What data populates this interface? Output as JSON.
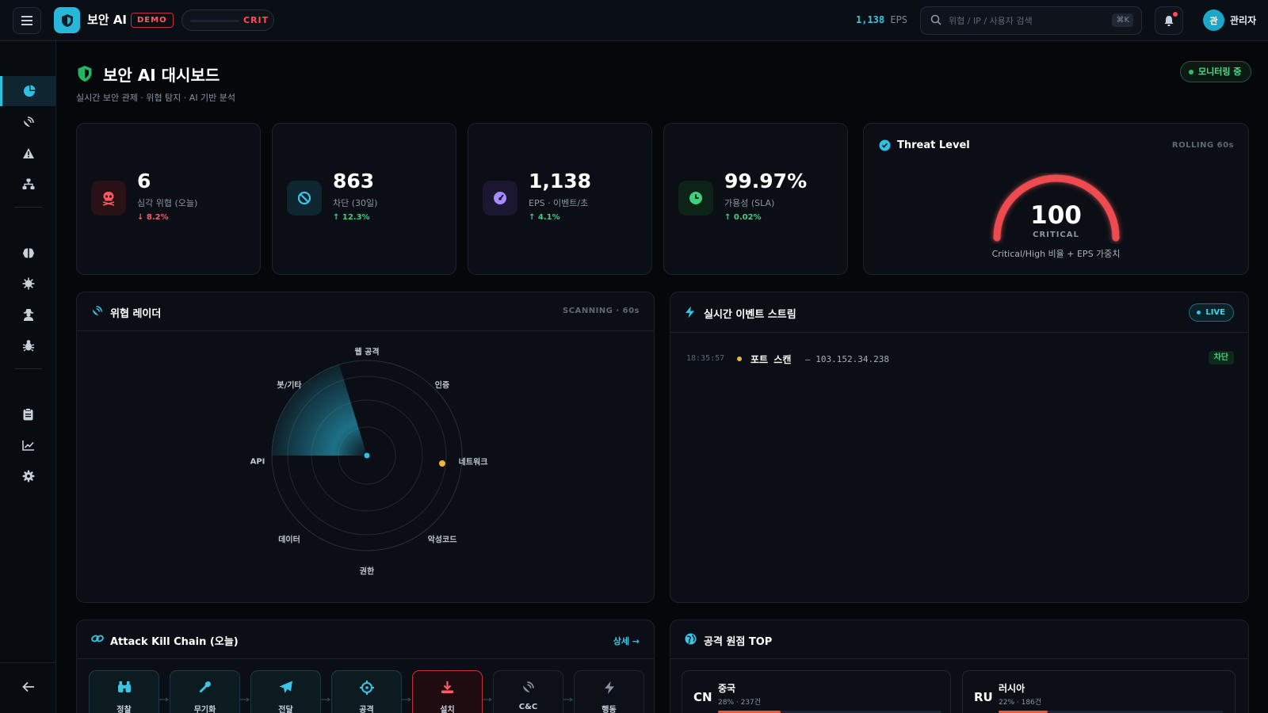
{
  "topbar": {
    "brand": "보안 AI",
    "demo_badge": "DEMO",
    "crit_label": "CRIT",
    "eps_value": "1,138",
    "eps_unit": "EPS",
    "search_placeholder": "위협 / IP / 사용자 검색",
    "search_shortcut": "⌘K",
    "avatar_initial": "관",
    "user_name": "관리자"
  },
  "header": {
    "title": "보안 AI 대시보드",
    "subtitle": "실시간 보안 관제 · 위협 탐지 · AI 기반 분석",
    "status_pill": "모니터링 중"
  },
  "stats": [
    {
      "value": "6",
      "label": "심각 위협 (오늘)",
      "delta": "↓ 8.2%",
      "icon": "skull-icon",
      "color": "#ff5b63"
    },
    {
      "value": "863",
      "label": "차단 (30일)",
      "delta": "↑ 12.3%",
      "icon": "block-icon",
      "color": "#39c6e6"
    },
    {
      "value": "1,138",
      "label": "EPS · 이벤트/초",
      "delta": "↑ 4.1%",
      "icon": "gauge-icon",
      "color": "#a98bff"
    },
    {
      "value": "99.97%",
      "label": "가용성 (SLA)",
      "delta": "↑ 0.02%",
      "icon": "clock-icon",
      "color": "#3cd07a"
    }
  ],
  "threat_level": {
    "title": "Threat Level",
    "window": "ROLLING 60s",
    "value": "100",
    "level": "CRITICAL",
    "caption": "Critical/High 비율 + EPS 가중치",
    "gauge_fraction": 1.0,
    "color": "#ef4b4f"
  },
  "radar": {
    "title": "위협 레이더",
    "status": "SCANNING · 60s",
    "labels": [
      "웹 공격",
      "인증",
      "네트워크",
      "악성코드",
      "권한",
      "데이터",
      "API",
      "봇/기타"
    ],
    "accent": "#2ec0e2",
    "blip_color": "#f0b43c"
  },
  "event_stream": {
    "title": "실시간 이벤트 스트림",
    "live_label": "LIVE",
    "events": [
      {
        "time": "18:35:57",
        "type": "포트 스캔",
        "ip": "— 103.152.34.238",
        "action": "차단"
      }
    ]
  },
  "kill_chain": {
    "title": "Attack Kill Chain (오늘)",
    "detail_link": "상세 →",
    "steps": [
      {
        "label": "정찰",
        "icon": "binoculars-icon",
        "state": "normal"
      },
      {
        "label": "무기화",
        "icon": "wrench-icon",
        "state": "normal"
      },
      {
        "label": "전달",
        "icon": "paper-plane-icon",
        "state": "normal"
      },
      {
        "label": "공격",
        "icon": "crosshair-icon",
        "state": "normal"
      },
      {
        "label": "설치",
        "icon": "download-icon",
        "state": "danger"
      },
      {
        "label": "C&C",
        "icon": "satellite-dish-icon",
        "state": "muted"
      },
      {
        "label": "행동",
        "icon": "bolt-icon",
        "state": "muted"
      }
    ]
  },
  "origins": {
    "title": "공격 원점 TOP",
    "items": [
      {
        "code": "CN",
        "name": "중국",
        "meta": "28% · 237건",
        "fraction": 0.28
      },
      {
        "code": "RU",
        "name": "러시아",
        "meta": "22% · 186건",
        "fraction": 0.22
      }
    ]
  }
}
